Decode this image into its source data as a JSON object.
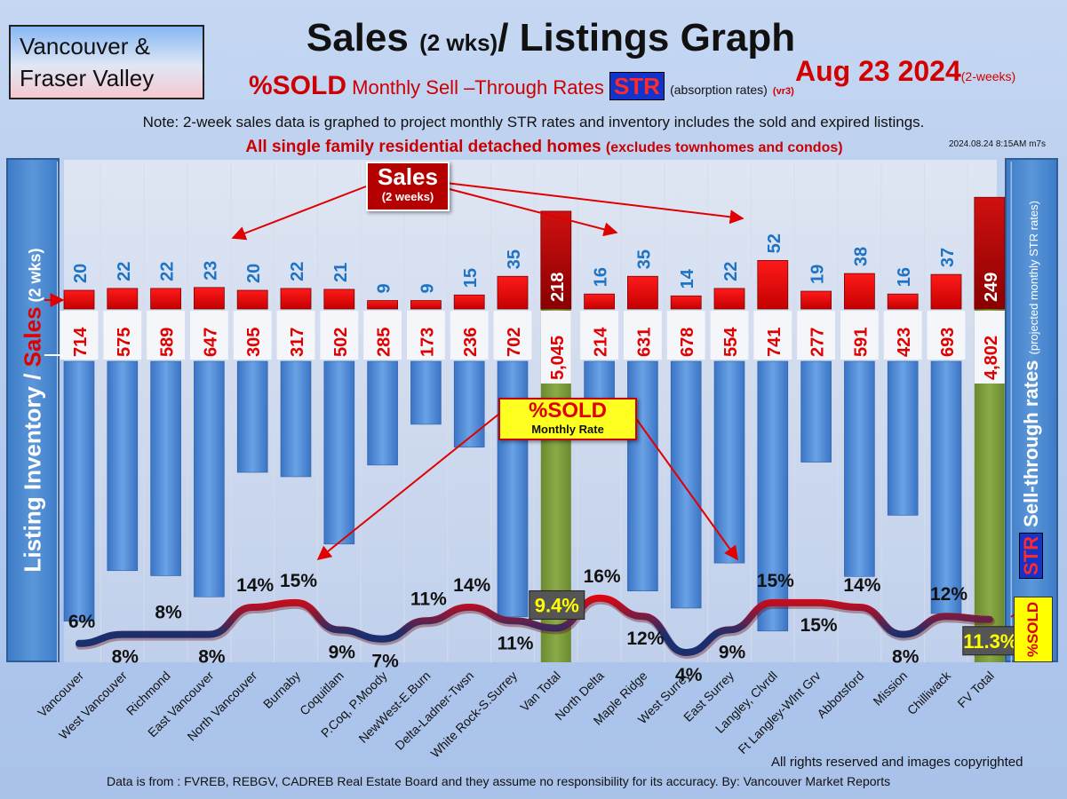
{
  "header": {
    "region_line1": "Vancouver &",
    "region_line2": "Fraser Valley",
    "title_main": "Sales ",
    "title_small": "(2 wks)",
    "title_rest": "/ Listings Graph",
    "date": "Aug 23  2024",
    "date_note": "(2-weeks)",
    "subtitle_sold": "%SOLD",
    "subtitle_text": " Monthly Sell –Through Rates ",
    "subtitle_str": "STR",
    "subtitle_absorption": "(absorption rates)",
    "subtitle_version": "(vr3)",
    "note": "Note: 2-week sales data is graphed to project monthly STR rates and inventory includes the sold and expired listings.",
    "single_family": "All single family residential detached homes ",
    "single_family_note": "(excludes townhomes and condos)",
    "timestamp": "2024.08.24 8:15AM m7s"
  },
  "axes": {
    "left_listing": "Listing Inventory / ",
    "left_sales": "Sales",
    "left_period": " (2  wks)",
    "right_title": "Sell-through rates",
    "right_note": "(projected monthly STR rates)",
    "sold_label": "%SOLD",
    "sold_str": "STR"
  },
  "callouts": {
    "sales_title": "Sales",
    "sales_period": "(2 weeks)",
    "sold_title": "%SOLD",
    "sold_sub": "Monthly Rate"
  },
  "footer": {
    "copyright": "All rights reserved and  images copyrighted",
    "source": "Data is from : FVREB, REBGV, CADREB Real Estate Board and they assume no responsibility for its accuracy. By: Vancouver Market Reports"
  },
  "colors": {
    "sales_bar": "#e00000",
    "inventory_bar": "#4a86d4",
    "total_bar": "#7a9a3a",
    "line_low": "#1b2f6e",
    "line_high": "#ff0000"
  },
  "chart_data": {
    "type": "bar",
    "categories": [
      "Vancouver",
      "West Vancouver",
      "Richmond",
      "East Vancouver",
      "North Vancouver",
      "Burnaby",
      "Coquitlam",
      "P.Coq, P.Moody",
      "NewWest-E.Burn",
      "Delta-Ladner-Twsn",
      "White Rock-S.Surrey",
      "Van Total",
      "North Delta",
      "Maple Ridge",
      "West Surrey",
      "East Surrey",
      "Langley, Clvrdl",
      "Ft Langley-Wlnt Grv",
      "Abbotsford",
      "Mission",
      "Chilliwack",
      "FV Total"
    ],
    "series": [
      {
        "name": "Sales",
        "values": [
          20,
          22,
          22,
          23,
          20,
          22,
          21,
          9,
          9,
          15,
          35,
          218,
          16,
          35,
          14,
          22,
          52,
          19,
          38,
          16,
          37,
          249
        ]
      },
      {
        "name": "Listing Inventory",
        "values": [
          714,
          575,
          589,
          647,
          305,
          317,
          502,
          285,
          173,
          236,
          702,
          5045,
          214,
          631,
          678,
          554,
          741,
          277,
          591,
          423,
          693,
          4802
        ]
      }
    ],
    "inventory_labels": [
      "714",
      "575",
      "589",
      "647",
      "305",
      "317",
      "502",
      "285",
      "173",
      "236",
      "702",
      "5,045",
      "214",
      "631",
      "678",
      "554",
      "741",
      "277",
      "591",
      "423",
      "693",
      "4,802"
    ],
    "str_labels": [
      "6%",
      "8%",
      "8%",
      "8%",
      "14%",
      "15%",
      "9%",
      "7%",
      "11%",
      "14%",
      "11%",
      "9.4%",
      "16%",
      "12%",
      "4%",
      "9%",
      "15%",
      "15%",
      "14%",
      "8%",
      "12%",
      "11.3%"
    ],
    "str_values": [
      6,
      8,
      8,
      8,
      14,
      15,
      9,
      7,
      11,
      14,
      11,
      9.4,
      16,
      12,
      4,
      9,
      15,
      15,
      14,
      8,
      12,
      11.3
    ],
    "totals": [
      "Van Total",
      "FV Total"
    ]
  }
}
